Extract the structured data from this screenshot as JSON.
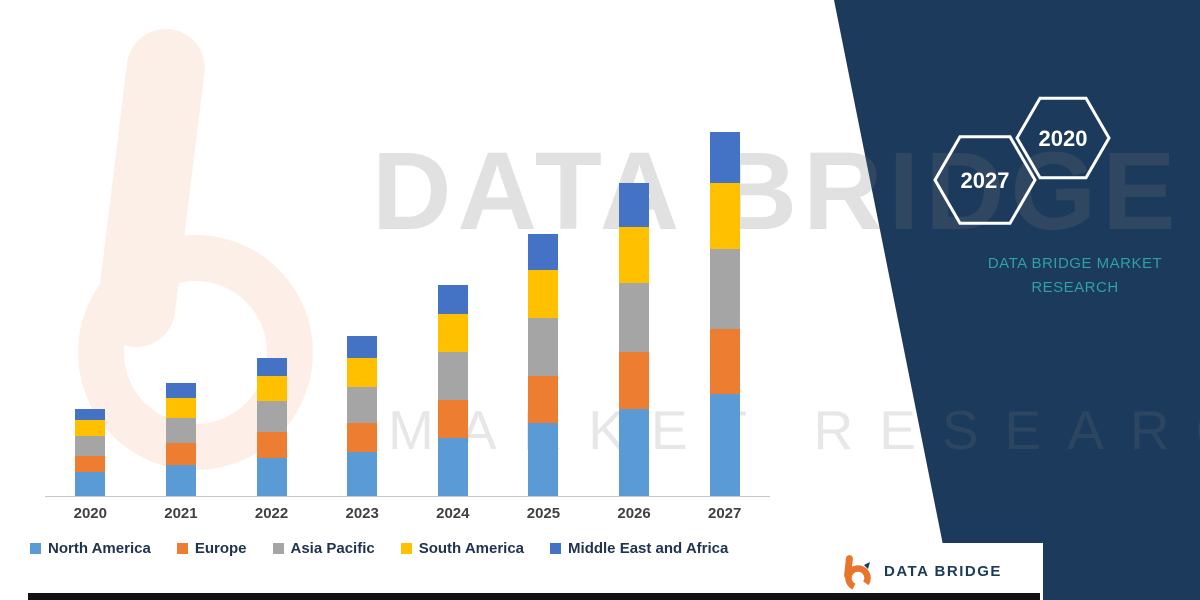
{
  "brand": {
    "watermark_line1": "DATA BRIDGE",
    "watermark_line2": "MARKET RESEARCH",
    "panel_heading_line1": "DATA BRIDGE MARKET",
    "panel_heading_line2": "RESEARCH",
    "hexagon_year_left": "2027",
    "hexagon_year_right": "2020",
    "footer_logo_text": "DATA BRIDGE",
    "colors": {
      "navy": "#1B3A5C",
      "teal": "#2FA0A4",
      "orange": "#E9742C"
    }
  },
  "chart_data": {
    "type": "bar",
    "stacked": true,
    "title": "",
    "xlabel": "",
    "ylabel": "",
    "value_axis_visible": false,
    "legend_position": "bottom",
    "categories": [
      "2020",
      "2021",
      "2022",
      "2023",
      "2024",
      "2025",
      "2026",
      "2027"
    ],
    "series": [
      {
        "name": "North America",
        "color": "#5B9BD5",
        "values": [
          6.5,
          8.5,
          10.5,
          12,
          16,
          20,
          24,
          28
        ]
      },
      {
        "name": "Europe",
        "color": "#ED7D31",
        "values": [
          4.5,
          6,
          7,
          8,
          10.5,
          13,
          15.5,
          18
        ]
      },
      {
        "name": "Asia Pacific",
        "color": "#A5A5A5",
        "values": [
          5.5,
          7,
          8.5,
          10,
          13,
          16,
          19,
          22
        ]
      },
      {
        "name": "South America",
        "color": "#FFC000",
        "values": [
          4.5,
          5.5,
          7,
          8,
          10.5,
          13,
          15.5,
          18
        ]
      },
      {
        "name": "Middle East and Africa",
        "color": "#4472C4",
        "values": [
          3,
          4,
          5,
          6,
          8,
          10,
          12,
          14
        ]
      }
    ],
    "totals": [
      24,
      31,
      38,
      44,
      58,
      72,
      86,
      100
    ],
    "note_axis": "no numeric value axis shown; values are relative units estimated from bar heights"
  }
}
